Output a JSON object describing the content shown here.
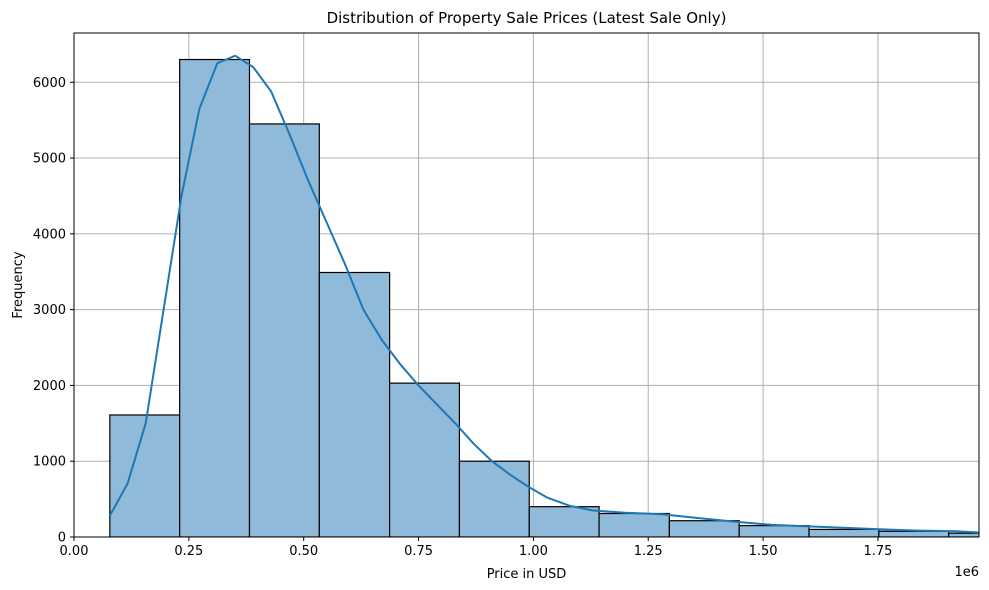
{
  "chart_data": {
    "type": "bar",
    "title": "Distribution of Property Sale Prices (Latest Sale Only)",
    "xlabel": "Price in USD",
    "ylabel": "Frequency",
    "x_offset_label": "1e6",
    "xlim": [
      0,
      1970000
    ],
    "ylim": [
      0,
      6650
    ],
    "x_ticks": [
      0,
      250000,
      500000,
      750000,
      1000000,
      1250000,
      1500000,
      1750000
    ],
    "x_tick_labels": [
      "0.00",
      "0.25",
      "0.50",
      "0.75",
      "1.00",
      "1.25",
      "1.50",
      "1.75"
    ],
    "y_ticks": [
      0,
      1000,
      2000,
      3000,
      4000,
      5000,
      6000
    ],
    "y_tick_labels": [
      "0",
      "1000",
      "2000",
      "3000",
      "4000",
      "5000",
      "6000"
    ],
    "grid": true,
    "bins": [
      {
        "x0": 78000,
        "x1": 230000,
        "count": 1610
      },
      {
        "x0": 230000,
        "x1": 382000,
        "count": 6300
      },
      {
        "x0": 382000,
        "x1": 534000,
        "count": 5450
      },
      {
        "x0": 534000,
        "x1": 687000,
        "count": 3490
      },
      {
        "x0": 687000,
        "x1": 839000,
        "count": 2030
      },
      {
        "x0": 839000,
        "x1": 991000,
        "count": 1000
      },
      {
        "x0": 991000,
        "x1": 1143000,
        "count": 400
      },
      {
        "x0": 1143000,
        "x1": 1296000,
        "count": 310
      },
      {
        "x0": 1296000,
        "x1": 1448000,
        "count": 215
      },
      {
        "x0": 1448000,
        "x1": 1600000,
        "count": 150
      },
      {
        "x0": 1600000,
        "x1": 1752000,
        "count": 100
      },
      {
        "x0": 1752000,
        "x1": 1904000,
        "count": 75
      },
      {
        "x0": 1904000,
        "x1": 2056000,
        "count": 50
      }
    ],
    "kde": {
      "x": [
        78000,
        117000,
        156000,
        195000,
        234000,
        273000,
        312000,
        351000,
        390000,
        429000,
        470000,
        510000,
        550000,
        590000,
        630000,
        670000,
        710000,
        750000,
        790000,
        830000,
        870000,
        910000,
        950000,
        990000,
        1030000,
        1080000,
        1130000,
        1200000,
        1280000,
        1360000,
        1440000,
        1520000,
        1600000,
        1680000,
        1760000,
        1840000,
        1920000,
        1970000
      ],
      "y": [
        280,
        710,
        1500,
        3000,
        4500,
        5650,
        6250,
        6350,
        6200,
        5880,
        5300,
        4700,
        4150,
        3600,
        3000,
        2600,
        2280,
        2000,
        1750,
        1500,
        1230,
        1000,
        820,
        660,
        520,
        410,
        350,
        320,
        300,
        250,
        200,
        160,
        140,
        120,
        100,
        85,
        75,
        60
      ]
    },
    "bar_color": "#8fbad9",
    "bar_edge_color": "#000000",
    "line_color": "#1f77b4",
    "grid_color": "#b0b0b0"
  }
}
